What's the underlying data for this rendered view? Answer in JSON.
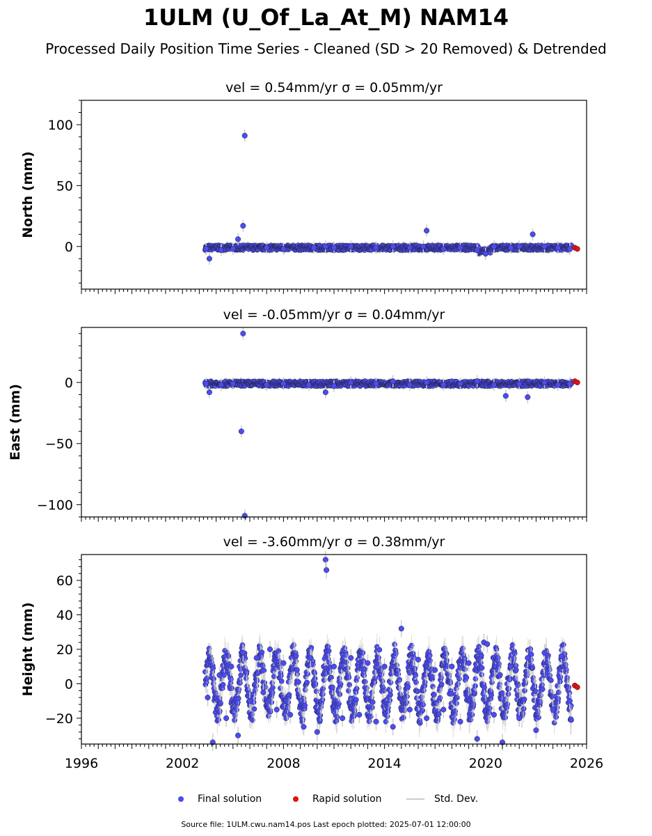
{
  "title": "1ULM (U_Of_La_At_M) NAM14",
  "subtitle": "Processed Daily Position Time Series - Cleaned (SD > 20 Removed) & Detrended",
  "colors": {
    "final": "#4c4cf0",
    "rapid": "#e3120b",
    "stddev": "#cccccc",
    "edge": "#222244"
  },
  "legend": {
    "final": "Final solution",
    "rapid": "Rapid solution",
    "stddev": "Std. Dev."
  },
  "footer": "Source file: 1ULM.cwu.nam14.pos  Last epoch plotted: 2025-07-01 12:00:00",
  "chart_data": [
    {
      "type": "scatter",
      "title": "vel = 0.54mm/yr   σ = 0.05mm/yr",
      "ylabel": "North (mm)",
      "xlim": [
        1996,
        2026
      ],
      "ylim": [
        -35,
        120
      ],
      "yticks": [
        0,
        50,
        100
      ],
      "xticks": [],
      "series": [
        {
          "name": "Final solution",
          "x": [
            2003.4,
            2003.6,
            2004.3,
            2005.0,
            2005.3,
            2005.6,
            2005.7,
            2007.0,
            2008.0,
            2009.8,
            2010.5,
            2011.0,
            2012.0,
            2013.5,
            2014.5,
            2015.5,
            2016.3,
            2016.5,
            2017.5,
            2018.5,
            2019.5,
            2020.0,
            2020.5,
            2021.5,
            2022.0,
            2022.8,
            2023.5,
            2024.3,
            2025.0
          ],
          "y": [
            -2,
            -10,
            -3,
            -2,
            6,
            17,
            91,
            -1,
            -2,
            -1,
            0,
            -1,
            0,
            -1,
            0,
            -1,
            0,
            13,
            -2,
            -1,
            -3,
            -6,
            0,
            -1,
            0,
            10,
            0,
            -1,
            -2
          ]
        },
        {
          "name": "Rapid solution",
          "x": [
            2025.3,
            2025.45
          ],
          "y": [
            -1,
            -2
          ]
        }
      ]
    },
    {
      "type": "scatter",
      "title": "vel = -0.05mm/yr   σ = 0.04mm/yr",
      "ylabel": "East (mm)",
      "xlim": [
        1996,
        2026
      ],
      "ylim": [
        -110,
        45
      ],
      "yticks": [
        0,
        -50,
        -100
      ],
      "xticks": [],
      "series": [
        {
          "name": "Final solution",
          "x": [
            2003.4,
            2003.6,
            2004.3,
            2005.0,
            2005.5,
            2005.6,
            2005.7,
            2007.0,
            2008.0,
            2009.5,
            2010.5,
            2011.0,
            2012.0,
            2013.5,
            2014.5,
            2015.5,
            2016.5,
            2017.5,
            2018.5,
            2019.5,
            2020.5,
            2021.2,
            2022.0,
            2022.5,
            2023.5,
            2024.3,
            2025.0
          ],
          "y": [
            -1,
            -8,
            -2,
            -1,
            -40,
            40,
            -109,
            -2,
            -1,
            -2,
            -8,
            -3,
            0,
            -1,
            1,
            -2,
            0,
            -2,
            -1,
            1,
            -2,
            -11,
            -1,
            -12,
            0,
            -2,
            -1
          ]
        },
        {
          "name": "Rapid solution",
          "x": [
            2025.3,
            2025.45
          ],
          "y": [
            1,
            0
          ]
        }
      ]
    },
    {
      "type": "scatter",
      "title": "vel = -3.60mm/yr   σ = 0.38mm/yr",
      "ylabel": "Height (mm)",
      "xlim": [
        1996,
        2026
      ],
      "ylim": [
        -35,
        75
      ],
      "yticks": [
        60,
        40,
        20,
        0,
        -20
      ],
      "xticks": [
        1996,
        2002,
        2008,
        2014,
        2020,
        2026
      ],
      "series": [
        {
          "name": "Final solution",
          "x": [
            2003.5,
            2003.8,
            2004.2,
            2004.6,
            2004.9,
            2005.3,
            2005.6,
            2006.0,
            2006.4,
            2006.8,
            2007.2,
            2007.6,
            2008.0,
            2008.4,
            2008.8,
            2009.2,
            2009.6,
            2010.0,
            2010.5,
            2010.55,
            2011.0,
            2011.5,
            2012.0,
            2012.5,
            2013.0,
            2013.5,
            2014.0,
            2014.5,
            2015.0,
            2015.5,
            2016.0,
            2016.5,
            2017.0,
            2017.5,
            2018.0,
            2018.5,
            2019.0,
            2019.5,
            2019.9,
            2020.1,
            2020.5,
            2021.0,
            2021.5,
            2022.0,
            2022.5,
            2023.0,
            2023.5,
            2024.0,
            2024.5,
            2025.0
          ],
          "y": [
            -8,
            -34,
            5,
            -20,
            10,
            -30,
            18,
            -10,
            15,
            -5,
            20,
            -15,
            12,
            -18,
            8,
            -25,
            15,
            -28,
            72,
            66,
            10,
            -20,
            15,
            -18,
            12,
            -22,
            10,
            -25,
            32,
            -15,
            14,
            -20,
            8,
            -15,
            10,
            -22,
            12,
            -32,
            24,
            23,
            -18,
            -34,
            10,
            -20,
            15,
            -27,
            18,
            -15,
            16,
            -10
          ]
        },
        {
          "name": "Rapid solution",
          "x": [
            2025.3,
            2025.45
          ],
          "y": [
            -1,
            -2
          ]
        }
      ]
    }
  ]
}
